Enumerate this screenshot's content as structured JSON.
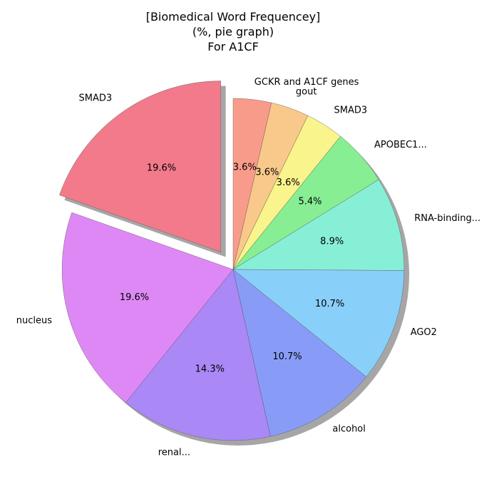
{
  "chart_data": {
    "type": "pie",
    "title_lines": [
      "[Biomedical Word Frequencey]",
      "(%, pie graph)",
      "For A1CF"
    ],
    "slices": [
      {
        "label": "GCKR and A1CF genes",
        "pct_label": "3.6%",
        "value": 3.6,
        "color": "#f99b8b",
        "exploded": false
      },
      {
        "label": "gout",
        "pct_label": "3.6%",
        "value": 3.6,
        "color": "#f9c98b",
        "exploded": false
      },
      {
        "label": "SMAD3",
        "pct_label": "3.6%",
        "value": 3.6,
        "color": "#f9f48b",
        "exploded": false
      },
      {
        "label": "APOBEC1...",
        "pct_label": "5.4%",
        "value": 5.4,
        "color": "#88ee94",
        "exploded": false
      },
      {
        "label": "RNA-binding...",
        "pct_label": "8.9%",
        "value": 8.9,
        "color": "#88efd7",
        "exploded": false
      },
      {
        "label": "AGO2",
        "pct_label": "10.7%",
        "value": 10.7,
        "color": "#88cff9",
        "exploded": false
      },
      {
        "label": "alcohol",
        "pct_label": "10.7%",
        "value": 10.7,
        "color": "#889cf7",
        "exploded": false
      },
      {
        "label": "renal...",
        "pct_label": "14.3%",
        "value": 14.3,
        "color": "#aa88f6",
        "exploded": false
      },
      {
        "label": "nucleus",
        "pct_label": "19.6%",
        "value": 19.6,
        "color": "#de88f6",
        "exploded": false
      },
      {
        "label": "SMAD3",
        "pct_label": "19.6%",
        "value": 19.6,
        "color": "#f27a8a",
        "exploded": true
      }
    ],
    "start_angle_deg": 90,
    "direction": "clockwise",
    "shadow": true
  }
}
